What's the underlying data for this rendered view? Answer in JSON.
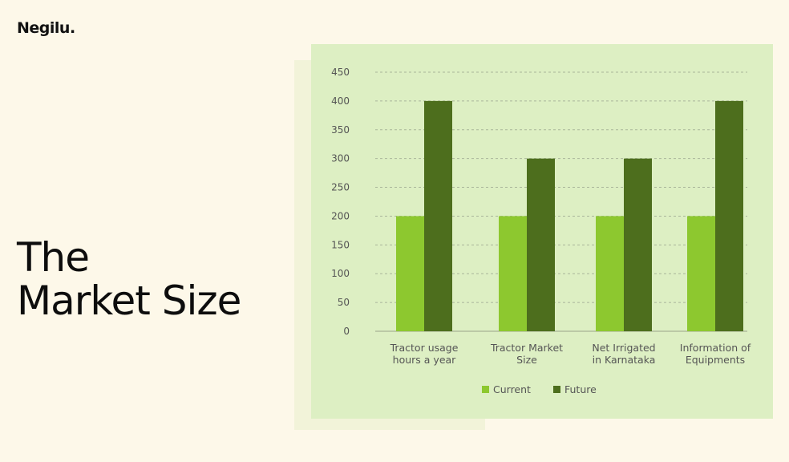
{
  "brand": "Negilu.",
  "heading": {
    "line1": "The",
    "line2": "Market Size"
  },
  "colors": {
    "current": "#8dc82f",
    "future": "#4d6e1d",
    "card": "#ddefc3",
    "page": "#fdf8e9"
  },
  "chart_data": {
    "type": "bar",
    "categories": [
      [
        "Tractor usage",
        "hours a year"
      ],
      [
        "Tractor Market",
        "Size"
      ],
      [
        "Net Irrigated",
        "in Karnataka"
      ],
      [
        "Information of",
        "Equipments"
      ]
    ],
    "series": [
      {
        "name": "Current",
        "values": [
          200,
          200,
          200,
          200
        ]
      },
      {
        "name": "Future",
        "values": [
          400,
          300,
          300,
          400
        ]
      }
    ],
    "yticks": [
      0,
      50,
      100,
      150,
      200,
      250,
      300,
      350,
      400,
      450
    ],
    "ylim": [
      0,
      450
    ],
    "grid": true,
    "legend": "bottom"
  }
}
